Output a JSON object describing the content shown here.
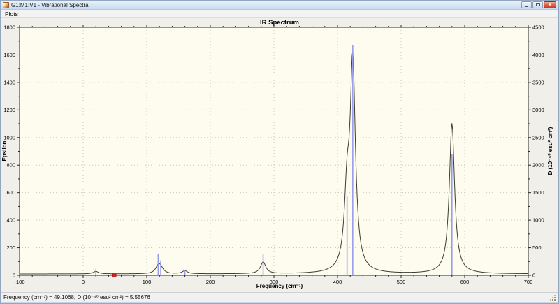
{
  "window": {
    "title": "G1:M1:V1 - Vibrational Spectra",
    "buttons": {
      "close_glyph": "✕"
    }
  },
  "menu": {
    "items": [
      {
        "label": "Plots"
      }
    ]
  },
  "status_bar": {
    "text": "Frequency (cm⁻¹) = 49.1068, D (10⁻⁴⁰ esu² cm²) = 5.55676"
  },
  "chart_data": {
    "type": "line",
    "title": "IR Spectrum",
    "xlabel": "Frequency (cm⁻¹)",
    "ylabel_left": "Epsilon",
    "ylabel_right": "D (10⁻⁴⁰ esu² cm²)",
    "xlim": [
      -100,
      700
    ],
    "ylim_left": [
      0,
      1800
    ],
    "ylim_right": [
      0,
      4500
    ],
    "x_ticks": [
      -100,
      0,
      100,
      200,
      300,
      400,
      500,
      600,
      700
    ],
    "x_minor_step": 20,
    "yleft_ticks": [
      0,
      200,
      400,
      600,
      800,
      1000,
      1200,
      1400,
      1600,
      1800
    ],
    "yleft_minor_step": 100,
    "yright_ticks": [
      0,
      500,
      1000,
      1500,
      2000,
      2500,
      3000,
      3500,
      4000,
      4500
    ],
    "yright_minor_step": 250,
    "grid": "dotted",
    "plot_bg": "#fdfcee",
    "grid_color": "#c9c9c4",
    "axis_color": "#2a2a2a",
    "series": [
      {
        "name": "intensity-sticks",
        "type": "stick",
        "axis": "right",
        "color": "#979ee9",
        "points": [
          [
            20,
            110
          ],
          [
            118,
            395
          ],
          [
            122,
            270
          ],
          [
            160,
            100
          ],
          [
            283,
            390
          ],
          [
            415,
            1430
          ],
          [
            424,
            4180
          ],
          [
            580,
            2195
          ]
        ]
      },
      {
        "name": "epsilon-curve",
        "type": "lorentzian-sum",
        "axis": "left",
        "color": "#3d3d35",
        "hwhm": 5,
        "baseline": 10,
        "peaks": [
          [
            20,
            18
          ],
          [
            118,
            50
          ],
          [
            122,
            35
          ],
          [
            160,
            22
          ],
          [
            283,
            85
          ],
          [
            415,
            500
          ],
          [
            424,
            1500
          ],
          [
            580,
            1090
          ]
        ]
      }
    ],
    "cursor": {
      "freq": 49.1068,
      "D": 5.55676,
      "color": "#d42020"
    }
  }
}
